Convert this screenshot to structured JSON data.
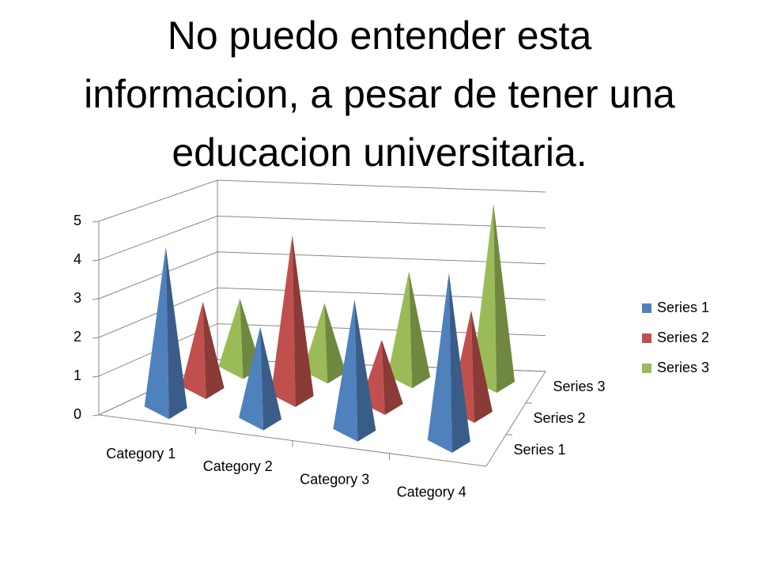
{
  "chart_data": {
    "type": "pyramid3d",
    "title": "No puedo entender esta informacion, a pesar de tener una educacion universitaria.",
    "categories": [
      "Category 1",
      "Category 2",
      "Category 3",
      "Category 4"
    ],
    "series": [
      {
        "name": "Series 1",
        "color": "#4f81bd",
        "values": [
          4.3,
          2.5,
          3.5,
          4.5
        ]
      },
      {
        "name": "Series 2",
        "color": "#c0504d",
        "values": [
          2.4,
          4.4,
          1.8,
          2.8
        ]
      },
      {
        "name": "Series 3",
        "color": "#9bbb59",
        "values": [
          2,
          2,
          3,
          5
        ]
      }
    ],
    "ylim": [
      0,
      5
    ],
    "yticks": [
      0,
      1,
      2,
      3,
      4,
      5
    ],
    "grid": true,
    "legend": "right"
  }
}
